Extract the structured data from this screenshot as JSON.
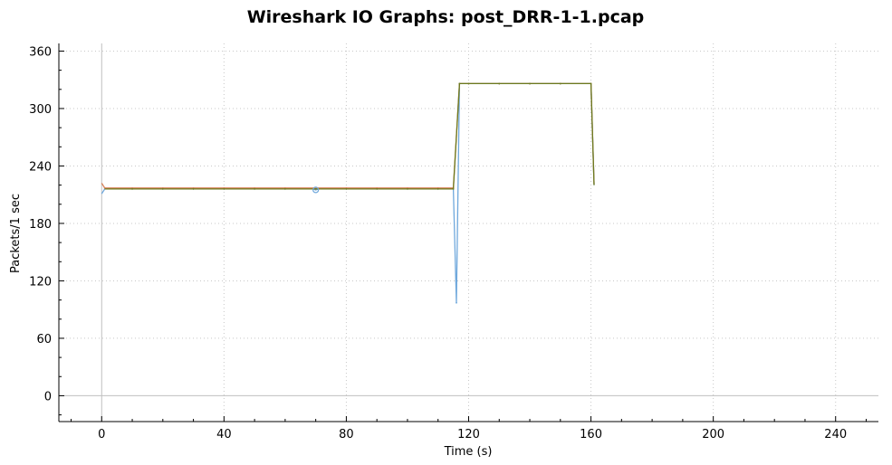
{
  "chart_data": {
    "type": "line",
    "title": "Wireshark IO Graphs: post_DRR-1-1.pcap",
    "xlabel": "Time (s)",
    "ylabel": "Packets/1 sec",
    "xlim": [
      -14,
      254
    ],
    "ylim": [
      -27,
      368
    ],
    "xticks": [
      0,
      40,
      80,
      120,
      160,
      200,
      240
    ],
    "yticks": [
      0,
      60,
      120,
      180,
      240,
      300,
      360
    ],
    "grid": true,
    "legend": "none",
    "series": [
      {
        "color": "#6fa8dc",
        "x": [
          0,
          1,
          10,
          20,
          30,
          40,
          50,
          60,
          69,
          70,
          71,
          80,
          90,
          100,
          110,
          115,
          116,
          117,
          120,
          130,
          140,
          150,
          160,
          161
        ],
        "y": [
          211,
          216,
          216,
          216,
          216,
          216,
          216,
          216,
          216,
          215,
          216,
          216,
          216,
          216,
          216,
          216,
          97,
          326,
          326,
          326,
          326,
          326,
          326,
          220
        ]
      },
      {
        "color": "#d9825b",
        "x": [
          0,
          1,
          10,
          20,
          30,
          40,
          50,
          60,
          70,
          80,
          90,
          100,
          110,
          115,
          117,
          120,
          130,
          140,
          150,
          160,
          161
        ],
        "y": [
          222,
          217,
          217,
          217,
          217,
          217,
          217,
          217,
          217,
          217,
          217,
          217,
          217,
          217,
          326,
          326,
          326,
          326,
          326,
          326,
          221
        ]
      },
      {
        "color": "#6b7a1e",
        "x": [
          1,
          10,
          20,
          30,
          40,
          50,
          60,
          70,
          80,
          90,
          100,
          110,
          115,
          117,
          120,
          130,
          140,
          150,
          160,
          161
        ],
        "y": [
          216,
          216,
          216,
          216,
          216,
          216,
          216,
          216,
          216,
          216,
          216,
          216,
          216,
          326,
          326,
          326,
          326,
          326,
          326,
          220
        ]
      }
    ],
    "markers": [
      {
        "x": 70,
        "y": 215,
        "color": "#6fa8dc"
      }
    ]
  }
}
